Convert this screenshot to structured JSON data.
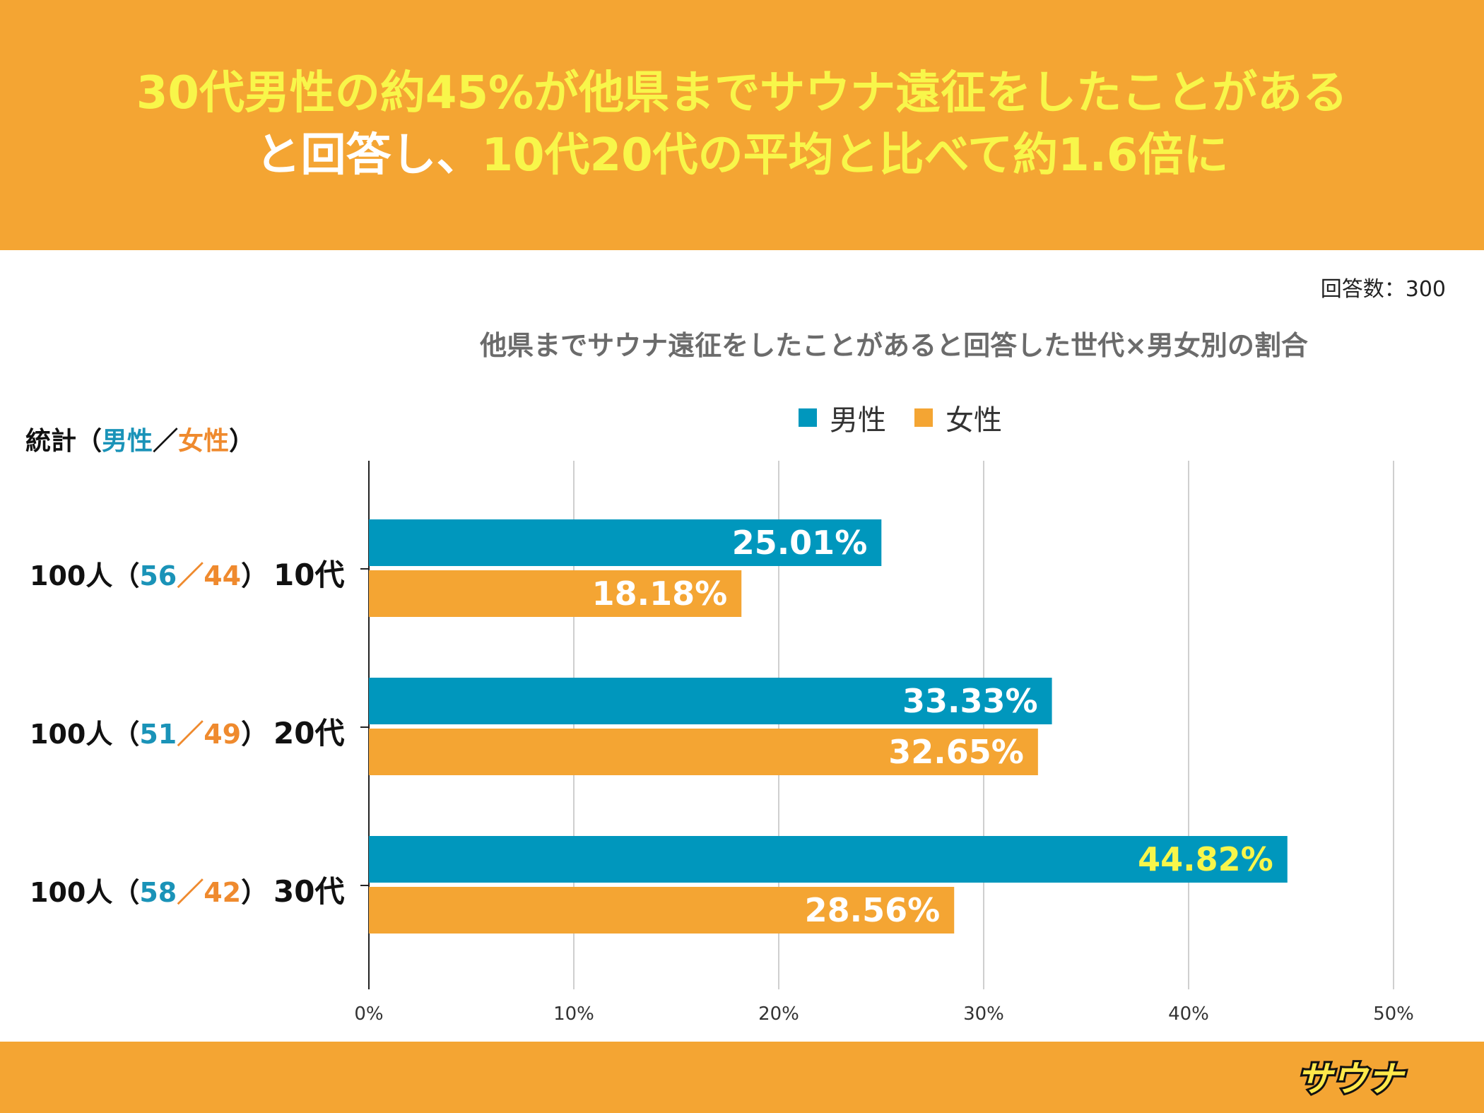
{
  "headline": {
    "line1": "30代男性の約45%が他県までサウナ遠征をしたことがある",
    "line2_prefix": "と回答し、",
    "line2_highlight": "10代20代の平均と比べて約1.6倍に"
  },
  "responses_label": "回答数：300",
  "stats": {
    "title_prefix": "統計（",
    "title_male": "男性",
    "title_sep": "／",
    "title_female": "女性",
    "title_suffix": "）",
    "rows": [
      {
        "total": "100人（",
        "male": "56",
        "sep": "／",
        "female": "44",
        "close": "）",
        "age": "10代"
      },
      {
        "total": "100人（",
        "male": "51",
        "sep": "／",
        "female": "49",
        "close": "）",
        "age": "20代"
      },
      {
        "total": "100人（",
        "male": "58",
        "sep": "／",
        "female": "42",
        "close": "）",
        "age": "30代"
      }
    ]
  },
  "colors": {
    "male": "#0097bd",
    "female": "#f4a533",
    "highlight_label": "#f8f64a"
  },
  "logo_text": "サウナ",
  "chart_data": {
    "type": "bar",
    "orientation": "horizontal",
    "title": "他県までサウナ遠征をしたことがあると回答した世代×男女別の割合",
    "categories": [
      "10代",
      "20代",
      "30代"
    ],
    "series": [
      {
        "name": "男性",
        "values": [
          25.01,
          33.33,
          44.82
        ],
        "labels": [
          "25.01%",
          "33.33%",
          "44.82%"
        ]
      },
      {
        "name": "女性",
        "values": [
          18.18,
          32.65,
          28.56
        ],
        "labels": [
          "18.18%",
          "32.65%",
          "28.56%"
        ]
      }
    ],
    "xlim": [
      0,
      50
    ],
    "xticks": [
      "0%",
      "10%",
      "20%",
      "30%",
      "40%",
      "50%"
    ],
    "grid": true,
    "legend": "top"
  }
}
